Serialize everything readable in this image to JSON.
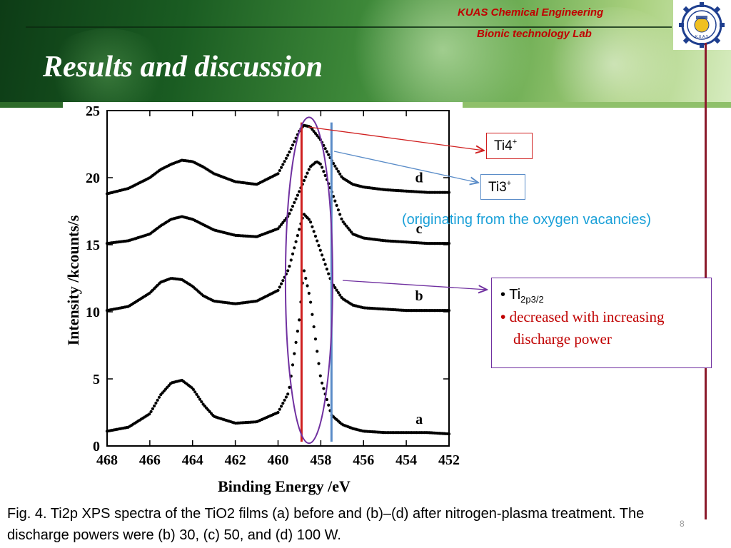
{
  "header": {
    "lab_line1": "KUAS Chemical Engineering",
    "lab_line2": "Bionic  technology  Lab",
    "title": "Results and discussion",
    "logo_text": "K.U.A.S"
  },
  "colors": {
    "accent_red": "#c00000",
    "ti4_marker": "#d02020",
    "ti3_marker": "#5a8cc8",
    "ellipse": "#7030a0",
    "note_blue": "#1aa0d8"
  },
  "annotations": {
    "ti4_label": "Ti4",
    "ti4_sup": "+",
    "ti3_label": "Ti3",
    "ti3_sup": "+",
    "origin_note": "(originating from the oxygen vacancies)",
    "ti2p_bullet": "•",
    "ti2p_label": "Ti",
    "ti2p_sub": "2p3/2",
    "trend_bullet": "•",
    "trend_line1": "decreased with increasing",
    "trend_line2": "discharge power"
  },
  "caption": "Fig. 4. Ti2p XPS spectra of the TiO2 films (a) before and (b)–(d) after nitrogen-plasma treatment. The discharge powers were (b) 30, (c) 50, and (d) 100 W.",
  "page_number": "8",
  "chart_data": {
    "type": "scatter",
    "title": "",
    "xlabel": "Binding Energy /eV",
    "ylabel": "Intensity /kcounts/s",
    "xlim": [
      468,
      452
    ],
    "ylim": [
      0,
      25
    ],
    "x_reversed": true,
    "xticks": [
      468,
      466,
      464,
      462,
      460,
      458,
      456,
      454,
      452
    ],
    "yticks": [
      0,
      5,
      10,
      15,
      20,
      25
    ],
    "grid": false,
    "reference_lines": [
      {
        "label": "Ti4+",
        "x": 458.9,
        "color": "#d02020"
      },
      {
        "label": "Ti3+",
        "x": 457.5,
        "color": "#5a8cc8"
      }
    ],
    "series": [
      {
        "name": "a",
        "x": [
          468,
          467,
          466,
          465.5,
          465,
          464.5,
          464,
          463.5,
          463,
          462,
          461,
          460,
          459.5,
          459,
          458.8,
          458.5,
          458,
          457.5,
          457,
          456.5,
          456,
          455,
          454,
          453,
          452
        ],
        "y": [
          1.1,
          1.4,
          2.4,
          3.8,
          4.7,
          4.9,
          4.3,
          3.1,
          2.2,
          1.7,
          1.8,
          2.5,
          4.0,
          9.5,
          13.2,
          11.0,
          5.0,
          2.3,
          1.6,
          1.3,
          1.1,
          1.0,
          1.0,
          1.0,
          0.9
        ]
      },
      {
        "name": "b",
        "x": [
          468,
          467,
          466,
          465.5,
          465,
          464.5,
          464,
          463.5,
          463,
          462,
          461,
          460,
          459.5,
          459,
          458.8,
          458.5,
          458,
          457.5,
          457,
          456.5,
          456,
          455,
          454,
          453,
          452
        ],
        "y": [
          10.1,
          10.4,
          11.4,
          12.2,
          12.5,
          12.4,
          11.9,
          11.2,
          10.8,
          10.6,
          10.8,
          11.6,
          13.2,
          16.2,
          17.3,
          16.8,
          14.5,
          12.2,
          11.0,
          10.5,
          10.3,
          10.2,
          10.1,
          10.1,
          10.1
        ]
      },
      {
        "name": "c",
        "x": [
          468,
          467,
          466,
          465.5,
          465,
          464.5,
          464,
          463.5,
          463,
          462,
          461,
          460,
          459.5,
          459,
          458.5,
          458.2,
          458,
          457.5,
          457,
          456.5,
          456,
          455,
          454,
          453,
          452
        ],
        "y": [
          15.1,
          15.3,
          15.8,
          16.4,
          16.9,
          17.1,
          16.9,
          16.5,
          16.1,
          15.7,
          15.6,
          16.2,
          17.2,
          19.0,
          20.8,
          21.2,
          21.0,
          19.0,
          16.8,
          15.8,
          15.5,
          15.3,
          15.2,
          15.1,
          15.1
        ]
      },
      {
        "name": "d",
        "x": [
          468,
          467,
          466,
          465.5,
          465,
          464.5,
          464,
          463.5,
          463,
          462,
          461,
          460,
          459.5,
          459,
          458.8,
          458.5,
          458,
          457.5,
          457,
          456.5,
          456,
          455,
          454,
          453,
          452
        ],
        "y": [
          18.8,
          19.2,
          20.0,
          20.6,
          21.0,
          21.3,
          21.2,
          20.8,
          20.3,
          19.7,
          19.5,
          20.3,
          21.8,
          23.5,
          23.9,
          23.8,
          22.8,
          21.3,
          20.0,
          19.5,
          19.3,
          19.1,
          19.0,
          18.9,
          18.9
        ]
      }
    ],
    "series_labels": [
      "a",
      "b",
      "c",
      "d"
    ]
  }
}
